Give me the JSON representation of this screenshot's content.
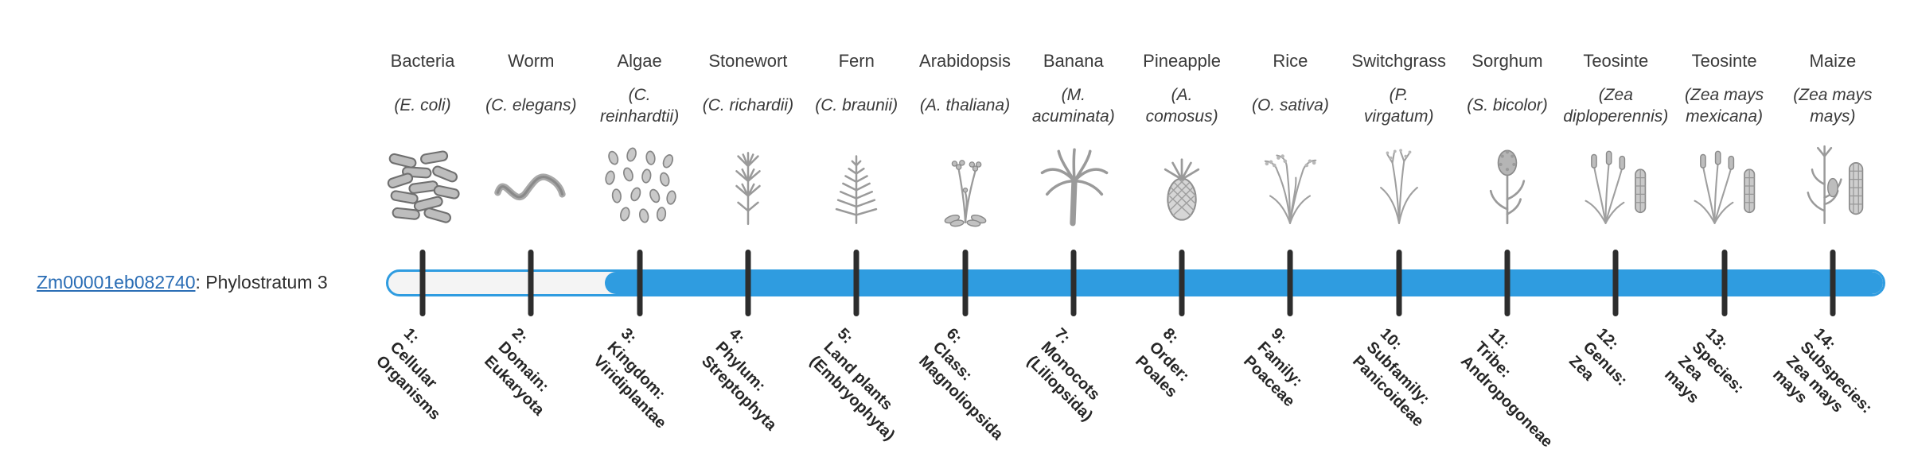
{
  "gene_row": {
    "gene_id": "Zm00001eb082740",
    "suffix": ": Phylostratum 3"
  },
  "timeline": {
    "filled_from_stratum": 3,
    "total_strata": 14,
    "bar_fill_color": "#2f9ce0",
    "bar_empty_color": "#f4f4f4",
    "tick_color": "#2d2d2d",
    "link_color": "#2a6db5"
  },
  "organisms": [
    {
      "stratum": 1,
      "common": "Bacteria",
      "scientific": "(E. coli)",
      "icon": "bacteria-icon",
      "stratum_label": "1:\nCellular\nOrganisms"
    },
    {
      "stratum": 2,
      "common": "Worm",
      "scientific": "(C. elegans)",
      "icon": "worm-icon",
      "stratum_label": "2:\nDomain:\nEukaryota"
    },
    {
      "stratum": 3,
      "common": "Algae",
      "scientific": "(C.\nreinhardtii)",
      "icon": "algae-icon",
      "stratum_label": "3:\nKingdom:\nViridiplantae"
    },
    {
      "stratum": 4,
      "common": "Stonewort",
      "scientific": "(C. richardii)",
      "icon": "stonewort-icon",
      "stratum_label": "4:\nPhylum:\nStreptophyta"
    },
    {
      "stratum": 5,
      "common": "Fern",
      "scientific": "(C. braunii)",
      "icon": "fern-icon",
      "stratum_label": "5:\nLand plants\n(Embryophyta)"
    },
    {
      "stratum": 6,
      "common": "Arabidopsis",
      "scientific": "(A. thaliana)",
      "icon": "arabidopsis-icon",
      "stratum_label": "6:\nClass:\nMagnoliopsida"
    },
    {
      "stratum": 7,
      "common": "Banana",
      "scientific": "(M.\nacuminata)",
      "icon": "banana-icon",
      "stratum_label": "7:\nMonocots\n(Liliopsida)"
    },
    {
      "stratum": 8,
      "common": "Pineapple",
      "scientific": "(A.\ncomosus)",
      "icon": "pineapple-icon",
      "stratum_label": "8:\nOrder:\nPoales"
    },
    {
      "stratum": 9,
      "common": "Rice",
      "scientific": "(O. sativa)",
      "icon": "rice-icon",
      "stratum_label": "9:\nFamily:\nPoaceae"
    },
    {
      "stratum": 10,
      "common": "Switchgrass",
      "scientific": "(P.\nvirgatum)",
      "icon": "switchgrass-icon",
      "stratum_label": "10:\nSubfamily:\nPanicoideae"
    },
    {
      "stratum": 11,
      "common": "Sorghum",
      "scientific": "(S. bicolor)",
      "icon": "sorghum-icon",
      "stratum_label": "11:\nTribe:\nAndropogoneae"
    },
    {
      "stratum": 12,
      "common": "Teosinte",
      "scientific": "(Zea\ndiploperennis)",
      "icon": "teosinte-icon",
      "stratum_label": "12:\nGenus:\nZea"
    },
    {
      "stratum": 13,
      "common": "Teosinte",
      "scientific": "(Zea mays\nmexicana)",
      "icon": "teosinte-icon",
      "stratum_label": "13:\nSpecies:\nZea\nmays"
    },
    {
      "stratum": 14,
      "common": "Maize",
      "scientific": "(Zea mays\nmays)",
      "icon": "maize-icon",
      "stratum_label": "14:\nSubspecies:\nZea mays\nmays"
    }
  ]
}
